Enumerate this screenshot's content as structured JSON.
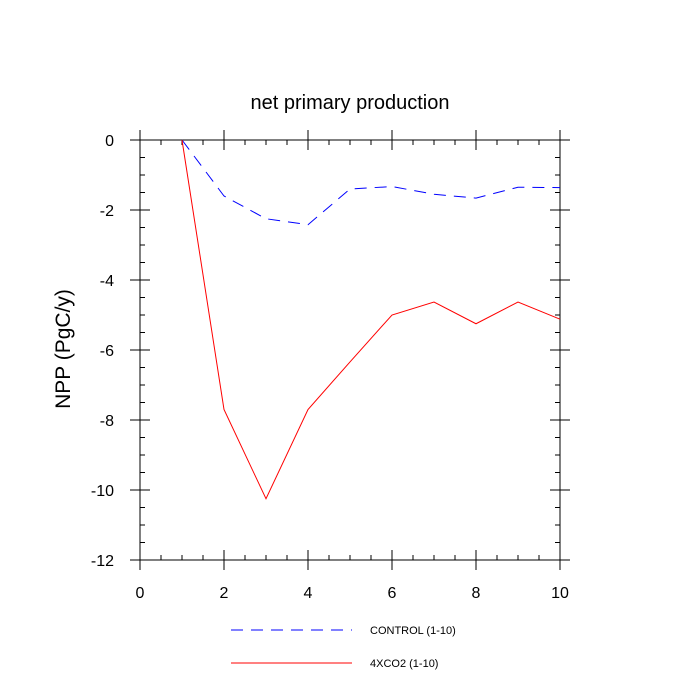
{
  "chart_data": {
    "type": "line",
    "title": "net primary production",
    "xlabel": "",
    "ylabel": "NPP  (PgC/y)",
    "xlim": [
      0,
      10
    ],
    "ylim": [
      -12,
      0
    ],
    "xticks": [
      0,
      2,
      4,
      6,
      8,
      10
    ],
    "yticks": [
      0,
      -2,
      -4,
      -6,
      -8,
      -10,
      -12
    ],
    "x": [
      1,
      2,
      3,
      4,
      5,
      6,
      7,
      8,
      9,
      10
    ],
    "series": [
      {
        "name": "CONTROL (1-10)",
        "color": "#0000ff",
        "dash": "dashed",
        "values": [
          0,
          -1.6,
          -2.25,
          -2.42,
          -1.4,
          -1.33,
          -1.55,
          -1.66,
          -1.35,
          -1.36
        ]
      },
      {
        "name": "4XCO2 (1-10)",
        "color": "#ff0000",
        "dash": "solid",
        "values": [
          0,
          -7.7,
          -10.25,
          -7.7,
          -6.34,
          -5.0,
          -4.63,
          -5.25,
          -4.63,
          -5.12
        ]
      }
    ],
    "legend_position": "bottom"
  }
}
